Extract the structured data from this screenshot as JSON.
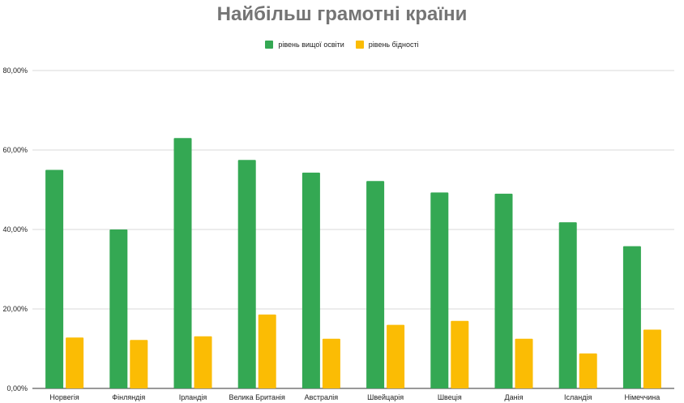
{
  "chart_data": {
    "type": "bar",
    "title": "Найбільш грамотні країни",
    "categories": [
      "Норвегія",
      "Фінляндія",
      "Ірландія",
      "Велика Британія",
      "Австралія",
      "Швейцарія",
      "Швеція",
      "Данія",
      "Ісландія",
      "Німеччина"
    ],
    "series": [
      {
        "name": "рівень вищої освіти",
        "color": "#34a853",
        "values": [
          55.0,
          40.0,
          63.0,
          57.5,
          54.3,
          52.2,
          49.3,
          49.0,
          41.8,
          35.8
        ]
      },
      {
        "name": "рівень бідності",
        "color": "#fbbc04",
        "values": [
          12.8,
          12.2,
          13.1,
          18.6,
          12.5,
          16.0,
          17.0,
          12.5,
          8.8,
          14.8
        ]
      }
    ],
    "ylim": [
      0,
      80
    ],
    "yticks": [
      "0,00%",
      "20,00%",
      "40,00%",
      "60,00%",
      "80,00%"
    ],
    "grid": true,
    "legend_position": "top"
  }
}
